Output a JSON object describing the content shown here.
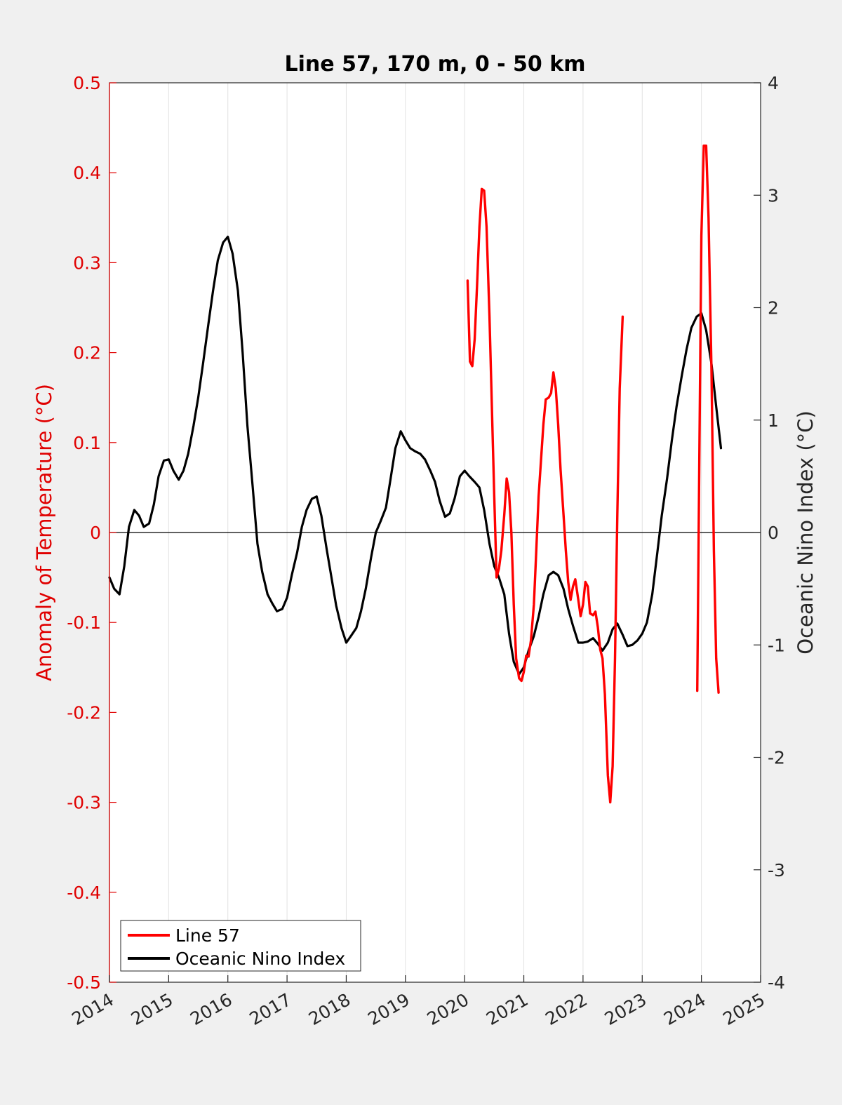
{
  "chart_data": {
    "type": "line",
    "title": "Line 57, 170 m, 0 - 50 km",
    "xlabel": "",
    "ylabel_left": "Anomaly of Temperature (°C)",
    "ylabel_right": "Oceanic Nino Index (°C)",
    "xlim": [
      2014,
      2025
    ],
    "ylim_left": [
      -0.5,
      0.5
    ],
    "ylim_right": [
      -4,
      4
    ],
    "x_ticks": [
      "2014",
      "2015",
      "2016",
      "2017",
      "2018",
      "2019",
      "2020",
      "2021",
      "2022",
      "2023",
      "2024",
      "2025"
    ],
    "y_left_ticks": [
      "0.5",
      "0.4",
      "0.3",
      "0.2",
      "0.1",
      "0",
      "-0.1",
      "-0.2",
      "-0.3",
      "-0.4",
      "-0.5"
    ],
    "y_right_ticks": [
      "4",
      "3",
      "2",
      "1",
      "0",
      "-1",
      "-2",
      "-3",
      "-4"
    ],
    "grid": "vertical",
    "zero_line": true,
    "legend_position": "bottom-left",
    "colors": {
      "line57": "#ff0000",
      "oni": "#000000",
      "left_axis": "#e00000",
      "right_axis": "#262626",
      "plot_bg": "#ffffff",
      "figure_bg": "#f0f0f0"
    },
    "series": [
      {
        "name": "Line 57",
        "axis": "left",
        "segments": [
          [
            [
              2020.05,
              0.28
            ],
            [
              2020.09,
              0.19
            ],
            [
              2020.13,
              0.185
            ],
            [
              2020.17,
              0.215
            ],
            [
              2020.21,
              0.275
            ],
            [
              2020.25,
              0.34
            ],
            [
              2020.29,
              0.382
            ],
            [
              2020.33,
              0.38
            ],
            [
              2020.37,
              0.34
            ],
            [
              2020.42,
              0.24
            ],
            [
              2020.46,
              0.14
            ],
            [
              2020.5,
              0.04
            ],
            [
              2020.54,
              -0.05
            ],
            [
              2020.58,
              -0.04
            ],
            [
              2020.62,
              -0.02
            ],
            [
              2020.67,
              0.02
            ],
            [
              2020.71,
              0.06
            ],
            [
              2020.75,
              0.045
            ],
            [
              2020.79,
              0.0
            ],
            [
              2020.83,
              -0.08
            ],
            [
              2020.87,
              -0.14
            ],
            [
              2020.92,
              -0.162
            ],
            [
              2020.96,
              -0.165
            ],
            [
              2021.0,
              -0.155
            ],
            [
              2021.04,
              -0.137
            ],
            [
              2021.08,
              -0.138
            ],
            [
              2021.12,
              -0.12
            ],
            [
              2021.17,
              -0.08
            ],
            [
              2021.21,
              -0.02
            ],
            [
              2021.25,
              0.04
            ],
            [
              2021.29,
              0.08
            ],
            [
              2021.33,
              0.12
            ],
            [
              2021.37,
              0.148
            ],
            [
              2021.42,
              0.15
            ],
            [
              2021.46,
              0.155
            ],
            [
              2021.5,
              0.178
            ],
            [
              2021.54,
              0.16
            ],
            [
              2021.58,
              0.12
            ],
            [
              2021.62,
              0.07
            ],
            [
              2021.67,
              0.02
            ],
            [
              2021.71,
              -0.02
            ],
            [
              2021.75,
              -0.055
            ],
            [
              2021.79,
              -0.075
            ],
            [
              2021.83,
              -0.06
            ],
            [
              2021.87,
              -0.052
            ],
            [
              2021.92,
              -0.075
            ],
            [
              2021.96,
              -0.093
            ],
            [
              2022.0,
              -0.08
            ],
            [
              2022.04,
              -0.055
            ],
            [
              2022.08,
              -0.06
            ],
            [
              2022.12,
              -0.09
            ],
            [
              2022.17,
              -0.092
            ],
            [
              2022.21,
              -0.088
            ],
            [
              2022.25,
              -0.105
            ],
            [
              2022.29,
              -0.13
            ],
            [
              2022.33,
              -0.14
            ],
            [
              2022.37,
              -0.18
            ],
            [
              2022.42,
              -0.27
            ],
            [
              2022.46,
              -0.3
            ],
            [
              2022.5,
              -0.26
            ],
            [
              2022.54,
              -0.14
            ],
            [
              2022.58,
              0.02
            ],
            [
              2022.62,
              0.16
            ],
            [
              2022.67,
              0.24
            ]
          ],
          [
            [
              2023.93,
              -0.176
            ],
            [
              2023.96,
              0.05
            ],
            [
              2024.0,
              0.33
            ],
            [
              2024.04,
              0.43
            ],
            [
              2024.08,
              0.43
            ],
            [
              2024.12,
              0.35
            ],
            [
              2024.17,
              0.18
            ],
            [
              2024.21,
              -0.02
            ],
            [
              2024.25,
              -0.14
            ],
            [
              2024.29,
              -0.178
            ]
          ]
        ]
      },
      {
        "name": "Oceanic Nino Index",
        "axis": "right",
        "points": [
          [
            2014.0,
            -0.4
          ],
          [
            2014.08,
            -0.5
          ],
          [
            2014.17,
            -0.55
          ],
          [
            2014.25,
            -0.3
          ],
          [
            2014.33,
            0.05
          ],
          [
            2014.42,
            0.2
          ],
          [
            2014.5,
            0.15
          ],
          [
            2014.58,
            0.05
          ],
          [
            2014.67,
            0.08
          ],
          [
            2014.75,
            0.25
          ],
          [
            2014.83,
            0.5
          ],
          [
            2014.92,
            0.64
          ],
          [
            2015.0,
            0.65
          ],
          [
            2015.08,
            0.55
          ],
          [
            2015.17,
            0.47
          ],
          [
            2015.25,
            0.55
          ],
          [
            2015.33,
            0.7
          ],
          [
            2015.42,
            0.95
          ],
          [
            2015.5,
            1.2
          ],
          [
            2015.58,
            1.5
          ],
          [
            2015.67,
            1.85
          ],
          [
            2015.75,
            2.15
          ],
          [
            2015.83,
            2.42
          ],
          [
            2015.92,
            2.58
          ],
          [
            2016.0,
            2.63
          ],
          [
            2016.08,
            2.48
          ],
          [
            2016.17,
            2.15
          ],
          [
            2016.25,
            1.6
          ],
          [
            2016.33,
            0.95
          ],
          [
            2016.42,
            0.4
          ],
          [
            2016.5,
            -0.1
          ],
          [
            2016.58,
            -0.35
          ],
          [
            2016.67,
            -0.55
          ],
          [
            2016.75,
            -0.63
          ],
          [
            2016.83,
            -0.7
          ],
          [
            2016.92,
            -0.68
          ],
          [
            2017.0,
            -0.58
          ],
          [
            2017.08,
            -0.38
          ],
          [
            2017.17,
            -0.18
          ],
          [
            2017.25,
            0.05
          ],
          [
            2017.33,
            0.2
          ],
          [
            2017.42,
            0.3
          ],
          [
            2017.5,
            0.32
          ],
          [
            2017.58,
            0.15
          ],
          [
            2017.67,
            -0.15
          ],
          [
            2017.75,
            -0.4
          ],
          [
            2017.83,
            -0.65
          ],
          [
            2017.92,
            -0.85
          ],
          [
            2018.0,
            -0.98
          ],
          [
            2018.08,
            -0.92
          ],
          [
            2018.17,
            -0.85
          ],
          [
            2018.25,
            -0.7
          ],
          [
            2018.33,
            -0.5
          ],
          [
            2018.42,
            -0.22
          ],
          [
            2018.5,
            0.0
          ],
          [
            2018.58,
            0.1
          ],
          [
            2018.67,
            0.22
          ],
          [
            2018.75,
            0.48
          ],
          [
            2018.83,
            0.75
          ],
          [
            2018.92,
            0.9
          ],
          [
            2019.0,
            0.82
          ],
          [
            2019.08,
            0.75
          ],
          [
            2019.17,
            0.72
          ],
          [
            2019.25,
            0.7
          ],
          [
            2019.33,
            0.65
          ],
          [
            2019.42,
            0.55
          ],
          [
            2019.5,
            0.45
          ],
          [
            2019.58,
            0.28
          ],
          [
            2019.67,
            0.14
          ],
          [
            2019.75,
            0.17
          ],
          [
            2019.83,
            0.3
          ],
          [
            2019.92,
            0.5
          ],
          [
            2020.0,
            0.55
          ],
          [
            2020.08,
            0.5
          ],
          [
            2020.17,
            0.45
          ],
          [
            2020.25,
            0.4
          ],
          [
            2020.33,
            0.2
          ],
          [
            2020.42,
            -0.1
          ],
          [
            2020.5,
            -0.3
          ],
          [
            2020.58,
            -0.4
          ],
          [
            2020.67,
            -0.55
          ],
          [
            2020.75,
            -0.9
          ],
          [
            2020.83,
            -1.15
          ],
          [
            2020.92,
            -1.26
          ],
          [
            2021.0,
            -1.2
          ],
          [
            2021.08,
            -1.05
          ],
          [
            2021.17,
            -0.92
          ],
          [
            2021.25,
            -0.75
          ],
          [
            2021.33,
            -0.55
          ],
          [
            2021.42,
            -0.38
          ],
          [
            2021.5,
            -0.35
          ],
          [
            2021.58,
            -0.38
          ],
          [
            2021.67,
            -0.5
          ],
          [
            2021.75,
            -0.68
          ],
          [
            2021.83,
            -0.83
          ],
          [
            2021.92,
            -0.98
          ],
          [
            2022.0,
            -0.98
          ],
          [
            2022.08,
            -0.97
          ],
          [
            2022.17,
            -0.94
          ],
          [
            2022.25,
            -0.99
          ],
          [
            2022.33,
            -1.05
          ],
          [
            2022.42,
            -0.98
          ],
          [
            2022.5,
            -0.86
          ],
          [
            2022.58,
            -0.81
          ],
          [
            2022.67,
            -0.91
          ],
          [
            2022.75,
            -1.01
          ],
          [
            2022.83,
            -1.0
          ],
          [
            2022.92,
            -0.96
          ],
          [
            2023.0,
            -0.9
          ],
          [
            2023.08,
            -0.8
          ],
          [
            2023.17,
            -0.55
          ],
          [
            2023.25,
            -0.2
          ],
          [
            2023.33,
            0.15
          ],
          [
            2023.42,
            0.48
          ],
          [
            2023.5,
            0.82
          ],
          [
            2023.58,
            1.12
          ],
          [
            2023.67,
            1.4
          ],
          [
            2023.75,
            1.63
          ],
          [
            2023.83,
            1.82
          ],
          [
            2023.92,
            1.92
          ],
          [
            2024.0,
            1.95
          ],
          [
            2024.08,
            1.8
          ],
          [
            2024.17,
            1.5
          ],
          [
            2024.25,
            1.12
          ],
          [
            2024.33,
            0.75
          ]
        ]
      }
    ]
  }
}
